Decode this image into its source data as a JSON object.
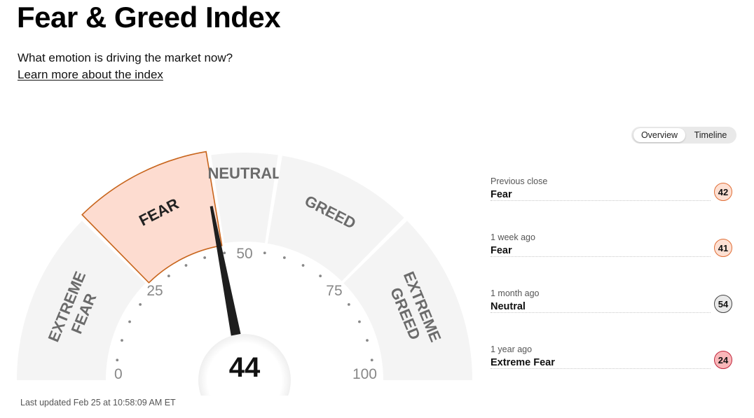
{
  "header": {
    "title": "Fear & Greed Index",
    "subtitle": "What emotion is driving the market now?",
    "learn_link": "Learn more about the index"
  },
  "view_toggle": {
    "options": [
      "Overview",
      "Timeline"
    ],
    "selected": "Overview"
  },
  "gauge": {
    "value": 44,
    "value_label": "44",
    "current_zone": "FEAR",
    "scale_labels": [
      "0",
      "25",
      "50",
      "75",
      "100"
    ],
    "zones": [
      "EXTREME FEAR",
      "FEAR",
      "NEUTRAL",
      "GREED",
      "EXTREME GREED"
    ],
    "colors": {
      "zone_bg": "#f4f4f4",
      "active_fill": "#fddcd0",
      "active_stroke": "#c8651c",
      "zone_text": "#6b6b6b",
      "needle": "#1e1e1e"
    }
  },
  "last_updated": "Last updated Feb 25 at 10:58:09 AM ET",
  "history": [
    {
      "label": "Previous close",
      "status": "Fear",
      "value": "42",
      "fill": "#fde0d3",
      "border": "#e06d35"
    },
    {
      "label": "1 week ago",
      "status": "Fear",
      "value": "41",
      "fill": "#fde0d3",
      "border": "#e06d35"
    },
    {
      "label": "1 month ago",
      "status": "Neutral",
      "value": "54",
      "fill": "#e9e9e9",
      "border": "#444444"
    },
    {
      "label": "1 year ago",
      "status": "Extreme Fear",
      "value": "24",
      "fill": "#f9b7b9",
      "border": "#c0233a"
    }
  ]
}
